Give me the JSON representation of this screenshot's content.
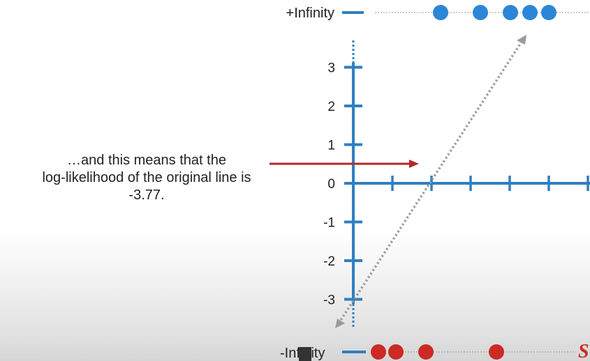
{
  "colors": {
    "axis": "#2f7fc1",
    "positive_point": "#2b86d6",
    "negative_point": "#cc2a24",
    "arrow": "#b02a2a",
    "dotted_line": "#999999",
    "text": "#222222"
  },
  "labels": {
    "pos_infinity": "+Infinity",
    "neg_infinity": "-Infinity",
    "logo_fragment": "S"
  },
  "caption": {
    "line1": "…and this means that the",
    "line2": "log-likelihood of the original line is",
    "line3": "-3.77."
  },
  "chart_data": {
    "type": "scatter",
    "title": "",
    "y_ticks": [
      3,
      2,
      1,
      0,
      -1,
      -2,
      -3
    ],
    "x_ticks_count": 6,
    "ylim": [
      -3,
      3
    ],
    "log_likelihood": -3.77,
    "positive_class_at": "+Infinity",
    "negative_class_at": "-Infinity",
    "positive_points_count": 5,
    "negative_points_count": 4
  }
}
